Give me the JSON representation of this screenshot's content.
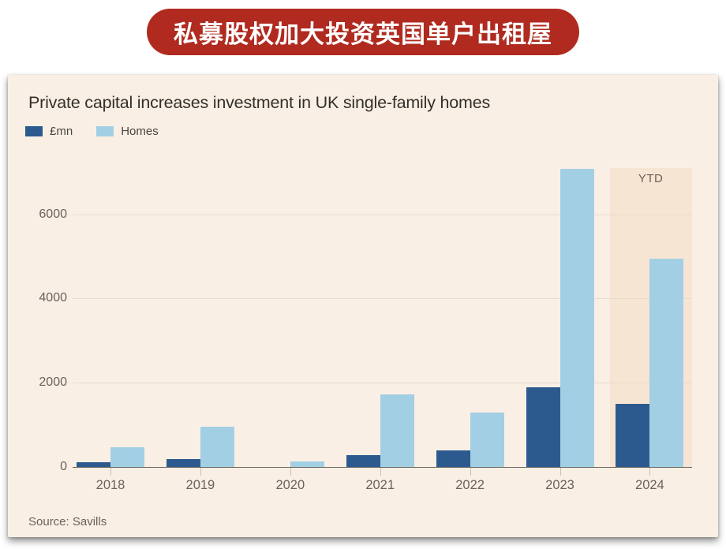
{
  "banner": {
    "text": "私募股权加大投资英国单户出租屋",
    "bg_color": "#B02A1F",
    "text_color": "#FFFFFF"
  },
  "panel": {
    "bg_color": "#FAEFE4",
    "band_color": "#F7E5D3",
    "title_color": "#33302C",
    "axis_text_color": "#6B6159",
    "legend_text_color": "#494540",
    "gridline_color": "#E8DCCB",
    "axis_line_color": "#6E675F",
    "tick_color": "#C9BEB1"
  },
  "chart_data": {
    "type": "bar",
    "title": "Private capital increases investment in UK single-family homes",
    "categories": [
      "2018",
      "2019",
      "2020",
      "2021",
      "2022",
      "2023",
      "2024"
    ],
    "series": [
      {
        "name": "£mn",
        "color": "#2D5A8E",
        "values": [
          110,
          190,
          0,
          290,
          390,
          1890,
          1500
        ]
      },
      {
        "name": "Homes",
        "color": "#A3CFE4",
        "values": [
          470,
          950,
          130,
          1720,
          1300,
          7090,
          4950
        ]
      }
    ],
    "xlabel": "",
    "ylabel": "",
    "ylim": [
      0,
      7100
    ],
    "yticks": [
      0,
      2000,
      4000,
      6000
    ],
    "grid": true,
    "legend_position": "top-left",
    "annotations": [
      {
        "text": "YTD",
        "category": "2024",
        "type": "highlight-band"
      }
    ],
    "source": "Source: Savills"
  }
}
